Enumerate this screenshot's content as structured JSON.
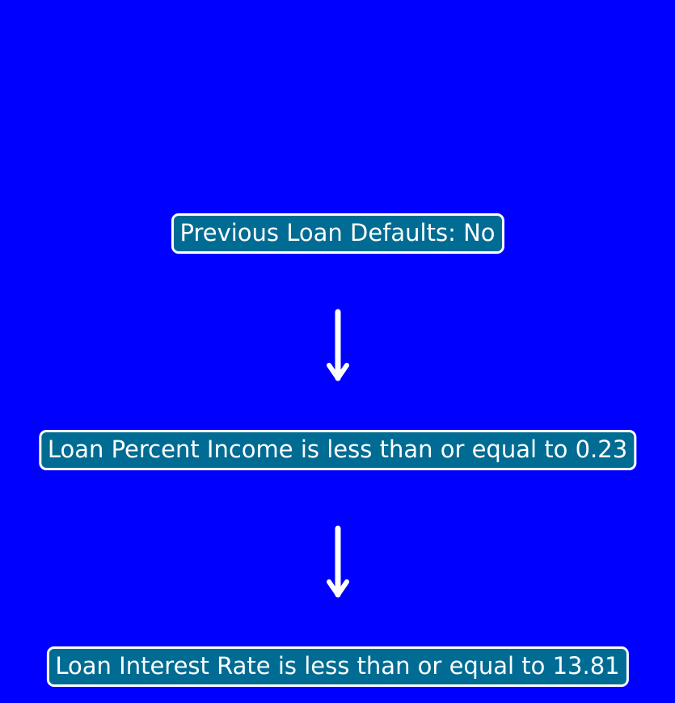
{
  "diagram": {
    "background_color": "#0000ff",
    "node_color": "#006c93",
    "nodes": [
      {
        "label": "Previous Loan Defaults: No"
      },
      {
        "label": "Loan Percent Income is less than or equal to 0.23"
      },
      {
        "label": "Loan Interest Rate is less than or equal to 13.81"
      }
    ],
    "edges": [
      {
        "from": 0,
        "to": 1
      },
      {
        "from": 1,
        "to": 2
      }
    ]
  }
}
